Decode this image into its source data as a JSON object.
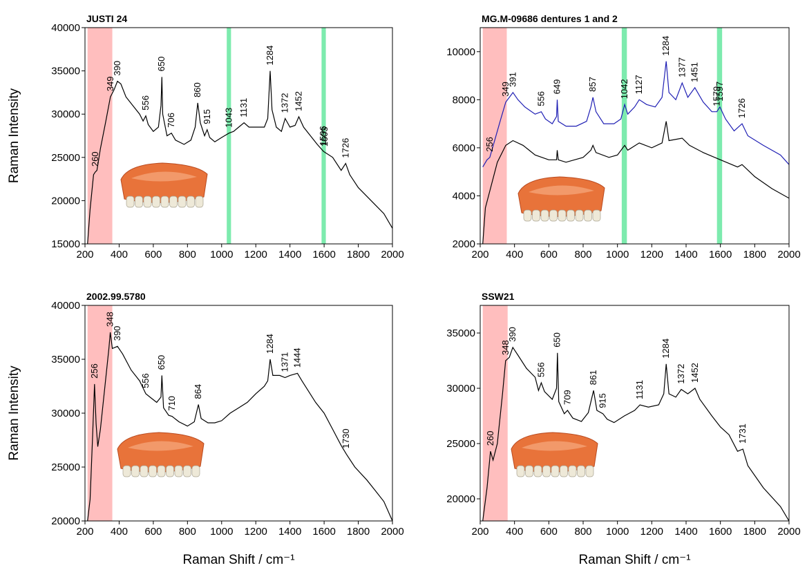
{
  "chart_data": [
    {
      "type": "line",
      "title": "JUSTI 24",
      "ylabel": "Raman Intensity",
      "xlim": [
        200,
        2000
      ],
      "xticks": [
        200,
        400,
        600,
        800,
        1000,
        1200,
        1400,
        1600,
        1800,
        2000
      ],
      "ylim": [
        15000,
        40000
      ],
      "yticks": [
        15000,
        20000,
        25000,
        30000,
        35000,
        40000
      ],
      "regions": [
        {
          "xrange": [
            215,
            360
          ],
          "color": "#ffb3b3",
          "label_color": "#8b1a1a"
        },
        {
          "xrange": [
            1030,
            1055
          ],
          "color": "#66e8a0",
          "label_color": "#1a9a5a"
        },
        {
          "xrange": [
            1585,
            1610
          ],
          "color": "#66e8a0",
          "label_color": "#1a9a5a"
        }
      ],
      "series": [
        {
          "color": "#000000",
          "x": [
            215,
            230,
            250,
            260,
            270,
            290,
            320,
            349,
            370,
            390,
            410,
            440,
            480,
            520,
            540,
            556,
            570,
            600,
            630,
            645,
            650,
            655,
            680,
            706,
            730,
            780,
            820,
            845,
            860,
            875,
            900,
            915,
            930,
            960,
            1000,
            1043,
            1070,
            1100,
            1131,
            1160,
            1200,
            1250,
            1270,
            1284,
            1295,
            1320,
            1350,
            1372,
            1400,
            1430,
            1452,
            1480,
            1520,
            1560,
            1596,
            1603,
            1650,
            1700,
            1726,
            1750,
            1800,
            1850,
            1900,
            1950,
            2000
          ],
          "values": [
            15000,
            19000,
            23000,
            23300,
            23500,
            26000,
            29000,
            32000,
            32800,
            33800,
            33500,
            32000,
            31000,
            30000,
            29200,
            29800,
            28800,
            28000,
            28500,
            31000,
            34300,
            30000,
            27500,
            27800,
            27000,
            26500,
            27000,
            28500,
            31300,
            29000,
            27500,
            28200,
            27300,
            26800,
            27300,
            27800,
            28000,
            28500,
            29000,
            28500,
            28500,
            28500,
            29500,
            35000,
            30500,
            28500,
            28000,
            29500,
            28500,
            28700,
            29700,
            28500,
            27500,
            26500,
            25700,
            25600,
            25000,
            23500,
            24300,
            23000,
            21500,
            20500,
            19500,
            18500,
            16800
          ]
        }
      ],
      "annotations": [
        260,
        349,
        390,
        556,
        650,
        706,
        860,
        915,
        1043,
        1131,
        1284,
        1372,
        1452,
        1596,
        1603,
        1726
      ]
    },
    {
      "type": "line",
      "title": "MG.M-09686 dentures 1 and 2",
      "xlim": [
        200,
        2000
      ],
      "xticks": [
        200,
        400,
        600,
        800,
        1000,
        1200,
        1400,
        1600,
        1800,
        2000
      ],
      "ylim": [
        2000,
        11000
      ],
      "yticks": [
        2000,
        4000,
        6000,
        8000,
        10000
      ],
      "regions": [
        {
          "xrange": [
            215,
            355
          ],
          "color": "#ffb3b3",
          "label_color": "#8b1a1a"
        },
        {
          "xrange": [
            1025,
            1055
          ],
          "color": "#66e8a0",
          "label_color": "#1a9a5a"
        },
        {
          "xrange": [
            1580,
            1610
          ],
          "color": "#66e8a0",
          "label_color": "#1a9a5a"
        }
      ],
      "series": [
        {
          "color": "#1f1fb4",
          "x": [
            215,
            240,
            256,
            280,
            320,
            349,
            370,
            391,
            420,
            460,
            520,
            556,
            580,
            620,
            645,
            649,
            655,
            700,
            760,
            820,
            845,
            857,
            875,
            920,
            980,
            1020,
            1042,
            1060,
            1100,
            1127,
            1170,
            1220,
            1260,
            1284,
            1300,
            1340,
            1377,
            1410,
            1451,
            1500,
            1550,
            1579,
            1597,
            1630,
            1680,
            1726,
            1760,
            1850,
            1950,
            2000
          ],
          "values": [
            5200,
            5500,
            5600,
            6200,
            7200,
            7900,
            8100,
            8300,
            8000,
            7700,
            7400,
            7500,
            7200,
            7000,
            7300,
            8000,
            7100,
            6900,
            6900,
            7100,
            7700,
            8100,
            7500,
            7000,
            7000,
            7200,
            7800,
            7400,
            7700,
            8000,
            7800,
            7700,
            8100,
            9600,
            8300,
            8000,
            8700,
            8100,
            8500,
            7900,
            7500,
            7500,
            7700,
            7200,
            6700,
            7000,
            6500,
            6100,
            5700,
            5300
          ]
        },
        {
          "color": "#000000",
          "x": [
            215,
            230,
            256,
            300,
            349,
            391,
            450,
            520,
            600,
            645,
            649,
            655,
            700,
            800,
            845,
            857,
            875,
            950,
            1000,
            1042,
            1060,
            1127,
            1200,
            1260,
            1284,
            1300,
            1377,
            1420,
            1500,
            1600,
            1700,
            1726,
            1800,
            1900,
            2000
          ],
          "values": [
            2000,
            3500,
            4200,
            5400,
            6100,
            6300,
            6100,
            5700,
            5500,
            5500,
            5900,
            5500,
            5400,
            5600,
            5900,
            6100,
            5800,
            5600,
            5700,
            6100,
            5900,
            6200,
            6000,
            6200,
            7100,
            6300,
            6400,
            6100,
            5800,
            5500,
            5200,
            5300,
            4800,
            4300,
            3900
          ]
        }
      ],
      "annotations": [
        256,
        349,
        391,
        556,
        649,
        857,
        1042,
        1127,
        1284,
        1377,
        1451,
        1579,
        1597,
        1726
      ]
    },
    {
      "type": "line",
      "title": "2002.99.5780",
      "ylabel": "Raman Intensity",
      "xlabel": "Raman Shift / cm⁻¹",
      "xlim": [
        200,
        2000
      ],
      "xticks": [
        200,
        400,
        600,
        800,
        1000,
        1200,
        1400,
        1600,
        1800,
        2000
      ],
      "ylim": [
        20000,
        40000
      ],
      "yticks": [
        20000,
        25000,
        30000,
        35000,
        40000
      ],
      "regions": [
        {
          "xrange": [
            215,
            360
          ],
          "color": "#ffb3b3",
          "label_color": "#8b1a1a"
        }
      ],
      "series": [
        {
          "color": "#000000",
          "x": [
            215,
            230,
            245,
            256,
            265,
            275,
            290,
            320,
            340,
            348,
            360,
            390,
            420,
            470,
            520,
            556,
            580,
            620,
            645,
            650,
            660,
            690,
            710,
            750,
            800,
            840,
            864,
            880,
            920,
            960,
            1000,
            1050,
            1100,
            1150,
            1200,
            1250,
            1270,
            1284,
            1300,
            1340,
            1371,
            1400,
            1444,
            1470,
            1550,
            1600,
            1650,
            1700,
            1730,
            1780,
            1850,
            1900,
            1950,
            2000
          ],
          "values": [
            20000,
            22000,
            28000,
            32700,
            29000,
            26900,
            28500,
            33000,
            36000,
            37500,
            36000,
            36200,
            35500,
            34000,
            33000,
            31800,
            31500,
            31000,
            31500,
            33500,
            30500,
            29800,
            29700,
            29200,
            28800,
            29200,
            30800,
            29500,
            29100,
            29100,
            29300,
            30000,
            30500,
            31000,
            31800,
            32500,
            33000,
            35000,
            33500,
            33500,
            33300,
            33500,
            33700,
            33000,
            31000,
            30000,
            28500,
            27000,
            26200,
            25000,
            23800,
            22800,
            21800,
            20000
          ]
        }
      ],
      "annotations": [
        256,
        348,
        390,
        556,
        650,
        710,
        864,
        1284,
        1371,
        1444,
        1730
      ]
    },
    {
      "type": "line",
      "title": "SSW21",
      "xlabel": "Raman Shift / cm⁻¹",
      "xlim": [
        200,
        2000
      ],
      "xticks": [
        200,
        400,
        600,
        800,
        1000,
        1200,
        1400,
        1600,
        1800,
        2000
      ],
      "ylim": [
        18000,
        37500
      ],
      "yticks": [
        20000,
        25000,
        30000,
        35000
      ],
      "regions": [
        {
          "xrange": [
            215,
            360
          ],
          "color": "#ffb3b3",
          "label_color": "#8b1a1a"
        }
      ],
      "series": [
        {
          "color": "#000000",
          "x": [
            215,
            240,
            260,
            275,
            300,
            330,
            348,
            370,
            390,
            420,
            470,
            520,
            540,
            556,
            575,
            620,
            645,
            650,
            658,
            690,
            709,
            740,
            790,
            830,
            861,
            880,
            915,
            940,
            980,
            1040,
            1100,
            1131,
            1180,
            1240,
            1270,
            1284,
            1300,
            1340,
            1372,
            1410,
            1452,
            1480,
            1550,
            1600,
            1650,
            1700,
            1731,
            1760,
            1850,
            1950,
            2000
          ],
          "values": [
            18000,
            21000,
            24300,
            23500,
            25000,
            29500,
            32500,
            32800,
            33700,
            33000,
            31800,
            31000,
            29800,
            30500,
            29700,
            29000,
            30000,
            33200,
            28800,
            27700,
            28000,
            27300,
            27000,
            27800,
            29800,
            28000,
            27700,
            27200,
            26900,
            27500,
            28000,
            28500,
            28300,
            28500,
            29500,
            32200,
            29500,
            29200,
            29900,
            29500,
            30000,
            29000,
            27500,
            26500,
            25800,
            24300,
            24500,
            23000,
            21000,
            19300,
            18000
          ]
        }
      ],
      "annotations": [
        260,
        348,
        390,
        556,
        650,
        709,
        861,
        915,
        1131,
        1284,
        1372,
        1452,
        1731
      ]
    }
  ]
}
